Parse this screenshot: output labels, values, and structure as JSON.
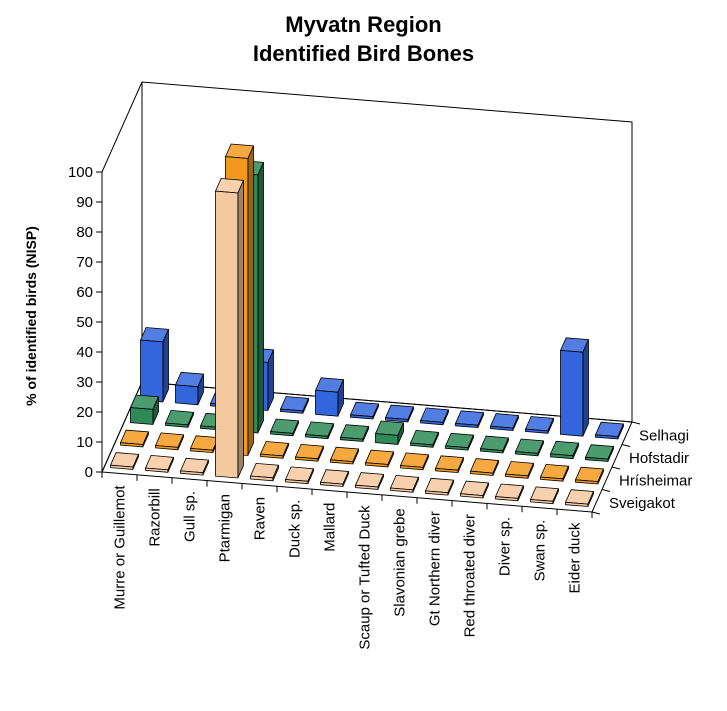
{
  "title": {
    "line1": "Myvatn Region",
    "line2": "Identified Bird Bones"
  },
  "chart_data": {
    "type": "bar",
    "subtype": "3d-clustered-depth",
    "ylabel": "% of identified birds (NISP)",
    "ylim": [
      0,
      100
    ],
    "yticks": [
      0,
      10,
      20,
      30,
      40,
      50,
      60,
      70,
      80,
      90,
      100
    ],
    "categories": [
      "Murre or Guillemot",
      "Razorbill",
      "Gull sp.",
      "Ptarmigan",
      "Raven",
      "Duck sp.",
      "Mallard",
      "Scaup or Tufted Duck",
      "Slavonian grebe",
      "Gt Northern diver",
      "Red throated diver",
      "Diver sp.",
      "Swan sp.",
      "Eider duck"
    ],
    "series": [
      {
        "name": "Sveigakot",
        "color": "#f5c9a0",
        "values": [
          0,
          0,
          0,
          95,
          1,
          0,
          0,
          0,
          0,
          0,
          0,
          0,
          0,
          0
        ]
      },
      {
        "name": "Hrísheimar",
        "color": "#f39a1e",
        "values": [
          0,
          0,
          0,
          99,
          0,
          0,
          0,
          0,
          0,
          0,
          0,
          0,
          0,
          0
        ]
      },
      {
        "name": "Hofstadir",
        "color": "#2e8b57",
        "values": [
          5,
          0,
          0,
          86,
          0,
          0,
          0,
          3,
          0,
          0,
          0,
          0,
          1,
          0
        ]
      },
      {
        "name": "Selhagi",
        "color": "#3366dd",
        "values": [
          20,
          6,
          0,
          16,
          0,
          8,
          0,
          0,
          0,
          0,
          0,
          0,
          28,
          0
        ]
      }
    ],
    "legend": "depth-axis-right",
    "grid": false
  }
}
